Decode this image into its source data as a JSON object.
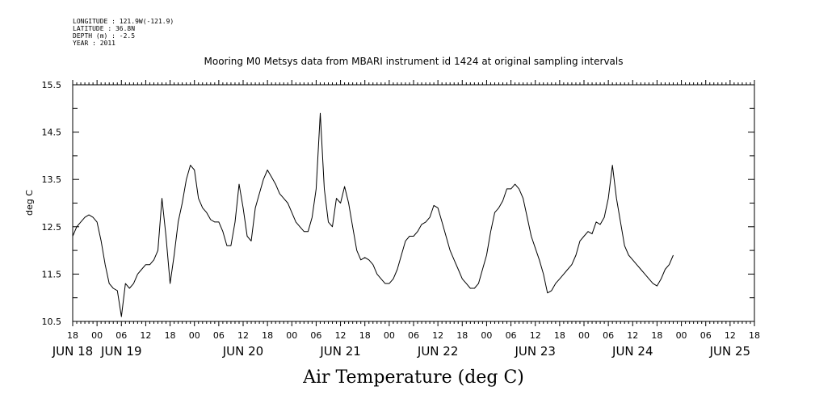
{
  "meta": {
    "longitude": "LONGITUDE : 121.9W(-121.9)",
    "latitude": "LATITUDE : 36.8N",
    "depth": "DEPTH (m) : -2.5",
    "year": "YEAR : 2011"
  },
  "chart_data": {
    "type": "line",
    "title": "Mooring M0 Metsys data from MBARI instrument id 1424 at original sampling intervals",
    "ylabel": "deg C",
    "xlabel": "Air Temperature (deg C)",
    "ylim": [
      10.5,
      15.5
    ],
    "yticks": [
      "15.5",
      "14.5",
      "13.5",
      "12.5",
      "11.5",
      "10.5"
    ],
    "x_unit": "hours since JUN 18 18:00",
    "xlim": [
      0,
      168
    ],
    "hour_ticks": [
      "18",
      "00",
      "06",
      "12",
      "18",
      "00",
      "06",
      "12",
      "18",
      "00",
      "06",
      "12",
      "18",
      "00",
      "06",
      "12",
      "18",
      "00",
      "06",
      "12",
      "18",
      "00",
      "06",
      "12",
      "18",
      "00",
      "06",
      "12",
      "18"
    ],
    "date_ticks": [
      {
        "label": "JUN 18",
        "hour": 0
      },
      {
        "label": "JUN 19",
        "hour": 12
      },
      {
        "label": "JUN 20",
        "hour": 42
      },
      {
        "label": "JUN 21",
        "hour": 66
      },
      {
        "label": "JUN 22",
        "hour": 90
      },
      {
        "label": "JUN 23",
        "hour": 114
      },
      {
        "label": "JUN 24",
        "hour": 138
      },
      {
        "label": "JUN 25",
        "hour": 162
      }
    ],
    "series": [
      {
        "values": [
          [
            0,
            12.3
          ],
          [
            1,
            12.5
          ],
          [
            2,
            12.6
          ],
          [
            3,
            12.7
          ],
          [
            4,
            12.75
          ],
          [
            5,
            12.7
          ],
          [
            6,
            12.6
          ],
          [
            7,
            12.2
          ],
          [
            8,
            11.7
          ],
          [
            9,
            11.3
          ],
          [
            10,
            11.2
          ],
          [
            11,
            11.15
          ],
          [
            12,
            10.6
          ],
          [
            13,
            11.3
          ],
          [
            14,
            11.2
          ],
          [
            15,
            11.3
          ],
          [
            16,
            11.5
          ],
          [
            17,
            11.6
          ],
          [
            18,
            11.7
          ],
          [
            19,
            11.7
          ],
          [
            20,
            11.8
          ],
          [
            21,
            12.0
          ],
          [
            22,
            13.1
          ],
          [
            23,
            12.3
          ],
          [
            24,
            11.3
          ],
          [
            25,
            11.9
          ],
          [
            26,
            12.6
          ],
          [
            27,
            13.0
          ],
          [
            28,
            13.5
          ],
          [
            29,
            13.8
          ],
          [
            30,
            13.7
          ],
          [
            31,
            13.1
          ],
          [
            32,
            12.9
          ],
          [
            33,
            12.8
          ],
          [
            34,
            12.65
          ],
          [
            35,
            12.6
          ],
          [
            36,
            12.6
          ],
          [
            37,
            12.4
          ],
          [
            38,
            12.1
          ],
          [
            39,
            12.1
          ],
          [
            40,
            12.6
          ],
          [
            41,
            13.4
          ],
          [
            42,
            12.9
          ],
          [
            43,
            12.3
          ],
          [
            44,
            12.2
          ],
          [
            45,
            12.9
          ],
          [
            46,
            13.2
          ],
          [
            47,
            13.5
          ],
          [
            48,
            13.7
          ],
          [
            49,
            13.55
          ],
          [
            50,
            13.4
          ],
          [
            51,
            13.2
          ],
          [
            52,
            13.1
          ],
          [
            53,
            13.0
          ],
          [
            54,
            12.8
          ],
          [
            55,
            12.6
          ],
          [
            56,
            12.5
          ],
          [
            57,
            12.4
          ],
          [
            58,
            12.4
          ],
          [
            59,
            12.7
          ],
          [
            60,
            13.3
          ],
          [
            61,
            14.9
          ],
          [
            62,
            13.3
          ],
          [
            63,
            12.6
          ],
          [
            64,
            12.5
          ],
          [
            65,
            13.1
          ],
          [
            66,
            13.0
          ],
          [
            67,
            13.35
          ],
          [
            68,
            13.0
          ],
          [
            69,
            12.5
          ],
          [
            70,
            12.0
          ],
          [
            71,
            11.8
          ],
          [
            72,
            11.85
          ],
          [
            73,
            11.8
          ],
          [
            74,
            11.7
          ],
          [
            75,
            11.5
          ],
          [
            76,
            11.4
          ],
          [
            77,
            11.3
          ],
          [
            78,
            11.3
          ],
          [
            79,
            11.4
          ],
          [
            80,
            11.6
          ],
          [
            81,
            11.9
          ],
          [
            82,
            12.2
          ],
          [
            83,
            12.3
          ],
          [
            84,
            12.3
          ],
          [
            85,
            12.4
          ],
          [
            86,
            12.55
          ],
          [
            87,
            12.6
          ],
          [
            88,
            12.7
          ],
          [
            89,
            12.95
          ],
          [
            90,
            12.9
          ],
          [
            91,
            12.6
          ],
          [
            92,
            12.3
          ],
          [
            93,
            12.0
          ],
          [
            94,
            11.8
          ],
          [
            95,
            11.6
          ],
          [
            96,
            11.4
          ],
          [
            97,
            11.3
          ],
          [
            98,
            11.2
          ],
          [
            99,
            11.2
          ],
          [
            100,
            11.3
          ],
          [
            101,
            11.6
          ],
          [
            102,
            11.9
          ],
          [
            103,
            12.4
          ],
          [
            104,
            12.8
          ],
          [
            105,
            12.9
          ],
          [
            106,
            13.05
          ],
          [
            107,
            13.3
          ],
          [
            108,
            13.3
          ],
          [
            109,
            13.4
          ],
          [
            110,
            13.3
          ],
          [
            111,
            13.1
          ],
          [
            112,
            12.7
          ],
          [
            113,
            12.3
          ],
          [
            114,
            12.05
          ],
          [
            115,
            11.8
          ],
          [
            116,
            11.5
          ],
          [
            117,
            11.1
          ],
          [
            118,
            11.15
          ],
          [
            119,
            11.3
          ],
          [
            120,
            11.4
          ],
          [
            121,
            11.5
          ],
          [
            122,
            11.6
          ],
          [
            123,
            11.7
          ],
          [
            124,
            11.9
          ],
          [
            125,
            12.2
          ],
          [
            126,
            12.3
          ],
          [
            127,
            12.4
          ],
          [
            128,
            12.35
          ],
          [
            129,
            12.6
          ],
          [
            130,
            12.55
          ],
          [
            131,
            12.7
          ],
          [
            132,
            13.1
          ],
          [
            133,
            13.8
          ],
          [
            134,
            13.1
          ],
          [
            135,
            12.6
          ],
          [
            136,
            12.1
          ],
          [
            137,
            11.9
          ],
          [
            138,
            11.8
          ],
          [
            139,
            11.7
          ],
          [
            140,
            11.6
          ],
          [
            141,
            11.5
          ],
          [
            142,
            11.4
          ],
          [
            143,
            11.3
          ],
          [
            144,
            11.25
          ],
          [
            145,
            11.4
          ],
          [
            146,
            11.6
          ],
          [
            147,
            11.7
          ],
          [
            148,
            11.9
          ]
        ]
      }
    ]
  }
}
